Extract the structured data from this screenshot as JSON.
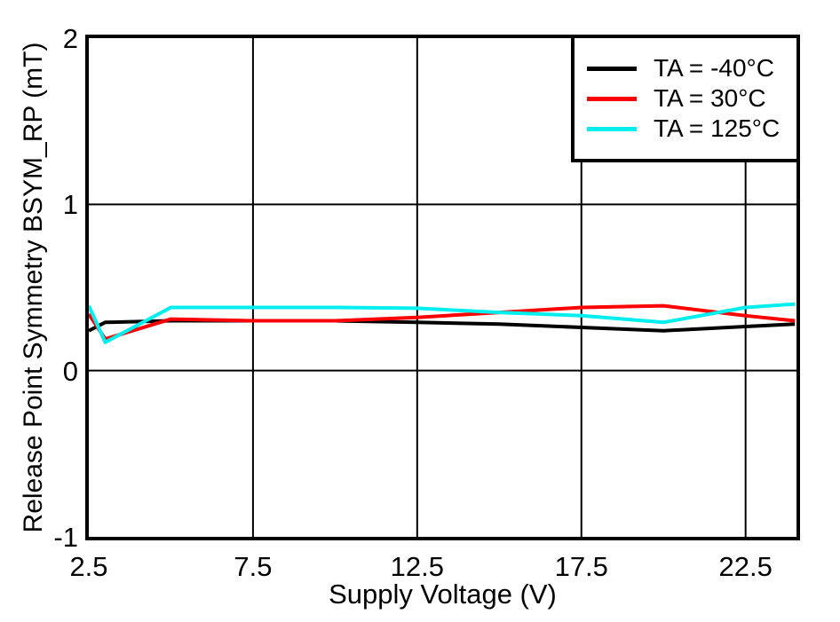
{
  "colors": {
    "axis": "#000000",
    "grid": "#000000",
    "background": "#ffffff"
  },
  "chart_data": {
    "type": "line",
    "title": "",
    "xlabel": "Supply Voltage (V)",
    "ylabel": "Release Point Symmetry BSYM_RP (mT)",
    "xlim": [
      2.5,
      24.05
    ],
    "ylim": [
      -1,
      2
    ],
    "xticks": [
      2.5,
      7.5,
      12.5,
      17.5,
      22.5
    ],
    "xtick_labels": [
      "2.5",
      "7.5",
      "12.5",
      "17.5",
      "22.5"
    ],
    "yticks": [
      2,
      1,
      0,
      -1
    ],
    "ytick_labels": [
      "2",
      "1",
      "0",
      "-1"
    ],
    "grid": true,
    "legend_position": "top-right",
    "x": [
      2.5,
      3,
      5,
      7.5,
      10,
      12.5,
      15,
      17.5,
      20,
      22.5,
      24
    ],
    "series": [
      {
        "name": "TA = -40°C",
        "color": "#000000",
        "values": [
          0.24,
          0.29,
          0.3,
          0.3,
          0.3,
          0.29,
          0.28,
          0.26,
          0.24,
          0.265,
          0.28
        ]
      },
      {
        "name": "TA = 30°C",
        "color": "#ff0000",
        "values": [
          0.34,
          0.19,
          0.31,
          0.3,
          0.3,
          0.32,
          0.35,
          0.38,
          0.39,
          0.33,
          0.3
        ]
      },
      {
        "name": "TA = 125°C",
        "color": "#00eeee",
        "values": [
          0.39,
          0.17,
          0.38,
          0.38,
          0.38,
          0.375,
          0.35,
          0.33,
          0.29,
          0.38,
          0.4
        ]
      }
    ]
  }
}
